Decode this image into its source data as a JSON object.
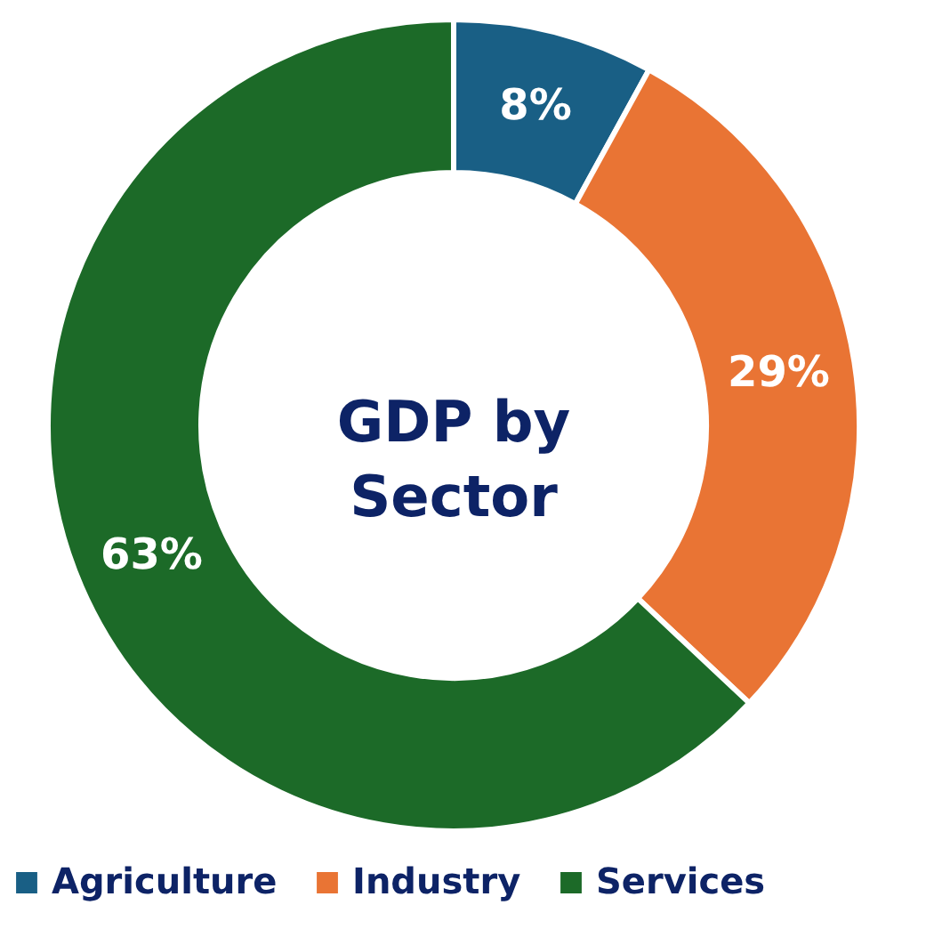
{
  "chart_data": {
    "type": "donut",
    "title": "GDP by Sector",
    "categories": [
      "Agriculture",
      "Industry",
      "Services"
    ],
    "values": [
      8,
      29,
      63
    ],
    "colors": [
      "#195f85",
      "#e97434",
      "#1c6a28"
    ],
    "value_labels": [
      "8%",
      "29%",
      "63%"
    ],
    "legend": "bottom"
  }
}
